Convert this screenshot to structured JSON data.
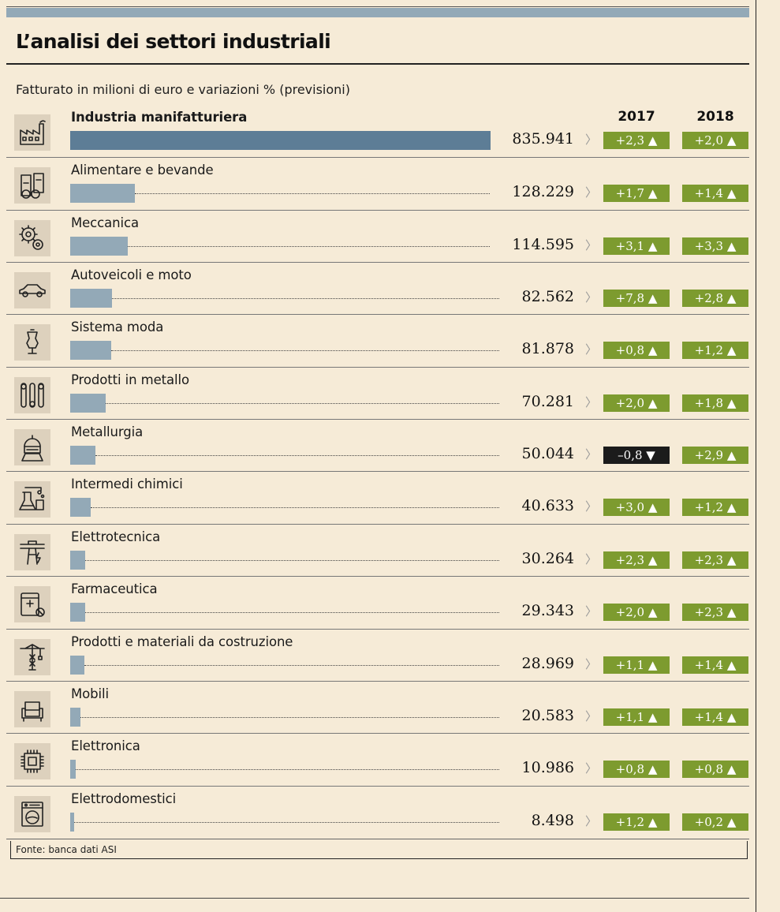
{
  "title": "L’analisi dei settori industriali",
  "subtitle": "Fatturato in milioni di euro e variazioni % (previsioni)",
  "years": [
    "2017",
    "2018"
  ],
  "source": "Fonte: banca dati ASI",
  "colors": {
    "main_bar": "#5d7d96",
    "bar": "#93a9b7",
    "positive": "#7d9b2f",
    "negative": "#1b1b1b",
    "background": "#f6ebd7"
  },
  "chart_data": {
    "type": "bar",
    "title": "L’analisi dei settori industriali",
    "subtitle": "Fatturato in milioni di euro e variazioni % (previsioni)",
    "categories": [
      "Industria manifatturiera",
      "Alimentare e bevande",
      "Meccanica",
      "Autoveicoli e moto",
      "Sistema moda",
      "Prodotti in metallo",
      "Metallurgia",
      "Intermedi chimici",
      "Elettrotecnica",
      "Farmaceutica",
      "Prodotti e materiali da costruzione",
      "Mobili",
      "Elettronica",
      "Elettrodomestici"
    ],
    "values": [
      835941,
      128229,
      114595,
      82562,
      81878,
      70281,
      50044,
      40633,
      30264,
      29343,
      28969,
      20583,
      10986,
      8498
    ],
    "value_labels": [
      "835.941",
      "128.229",
      "114.595",
      "82.562",
      "81.878",
      "70.281",
      "50.044",
      "40.633",
      "30.264",
      "29.343",
      "28.969",
      "20.583",
      "10.986",
      "8.498"
    ],
    "changes": {
      "2017": [
        2.3,
        1.7,
        3.1,
        7.8,
        0.8,
        2.0,
        -0.8,
        3.0,
        2.3,
        2.0,
        1.1,
        1.1,
        0.8,
        1.2
      ],
      "2018": [
        2.0,
        1.4,
        3.3,
        2.8,
        1.2,
        1.8,
        2.9,
        1.2,
        2.3,
        2.3,
        1.4,
        1.4,
        0.8,
        0.2
      ]
    },
    "change_labels": {
      "2017": [
        "+2,3 ▲",
        "+1,7 ▲",
        "+3,1 ▲",
        "+7,8 ▲",
        "+0,8 ▲",
        "+2,0 ▲",
        "–0,8 ▼",
        "+3,0 ▲",
        "+2,3 ▲",
        "+2,0 ▲",
        "+1,1 ▲",
        "+1,1 ▲",
        "+0,8 ▲",
        "+1,2 ▲"
      ],
      "2018": [
        "+2,0 ▲",
        "+1,4 ▲",
        "+3,3 ▲",
        "+2,8 ▲",
        "+1,2 ▲",
        "+1,8 ▲",
        "+2,9 ▲",
        "+1,2 ▲",
        "+2,3 ▲",
        "+2,3 ▲",
        "+1,4 ▲",
        "+1,4 ▲",
        "+0,8 ▲",
        "+0,2 ▲"
      ]
    },
    "icons": [
      "factory-icon",
      "food-drink-icon",
      "gears-icon",
      "car-icon",
      "mannequin-icon",
      "wrench-icon",
      "welder-icon",
      "chemistry-icon",
      "power-pylon-icon",
      "pharmacy-icon",
      "crane-icon",
      "armchair-icon",
      "chip-icon",
      "washing-machine-icon"
    ],
    "legend": "none",
    "grid": false
  }
}
